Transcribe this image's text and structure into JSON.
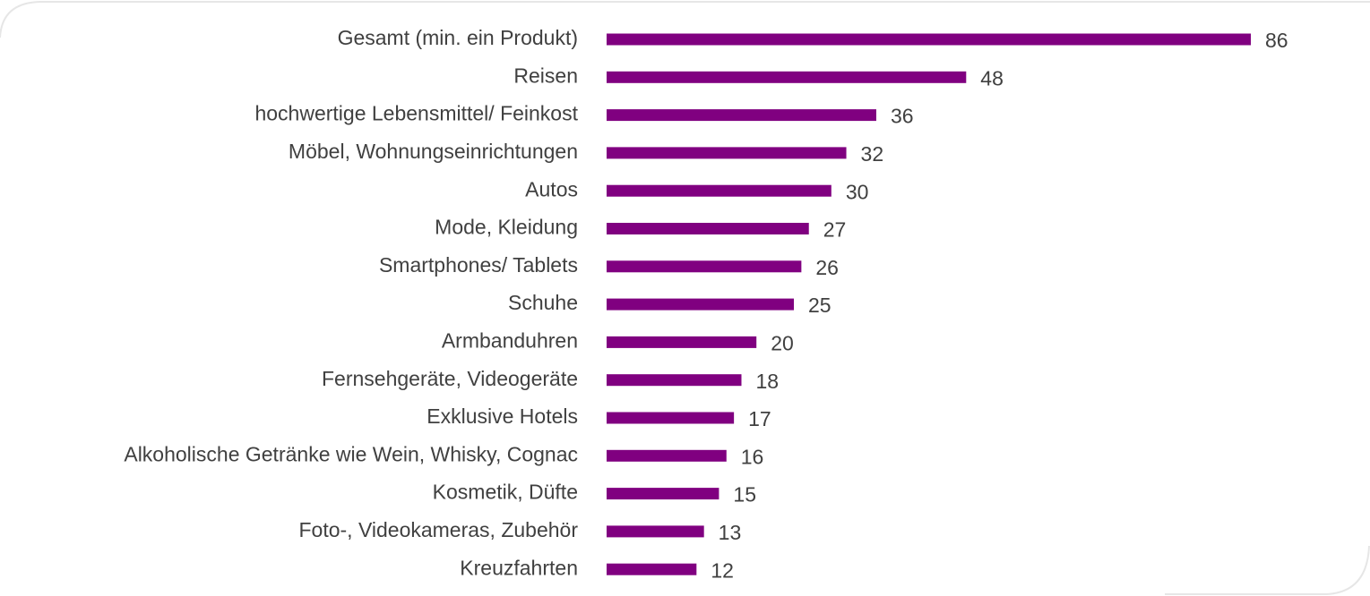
{
  "chart_data": {
    "type": "bar",
    "orientation": "horizontal",
    "color": "#800080",
    "categories": [
      "Gesamt (min. ein Produkt)",
      "Reisen",
      "hochwertige Lebensmittel/ Feinkost",
      "Möbel, Wohnungseinrichtungen",
      "Autos",
      "Mode, Kleidung",
      "Smartphones/ Tablets",
      "Schuhe",
      "Armbanduhren",
      "Fernsehgeräte, Videogeräte",
      "Exklusive Hotels",
      "Alkoholische Getränke wie Wein, Whisky, Cognac",
      "Kosmetik, Düfte",
      "Foto-, Videokameras, Zubehör",
      "Kreuzfahrten"
    ],
    "values": [
      86,
      48,
      36,
      32,
      30,
      27,
      26,
      25,
      20,
      18,
      17,
      16,
      15,
      13,
      12
    ]
  }
}
